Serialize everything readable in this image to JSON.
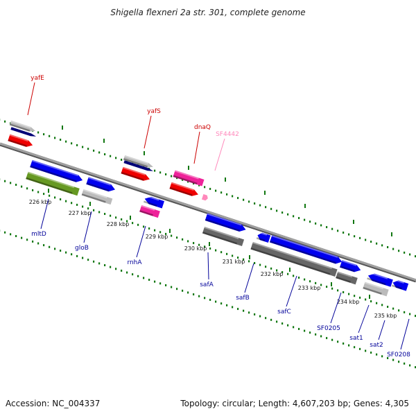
{
  "title": "Shigella flexneri 2a str. 301, complete genome",
  "footer": {
    "accession": "Accession: NC_004337",
    "summary": "Topology: circular; Length: 4,607,203 bp; Genes: 4,305"
  },
  "colors": {
    "upper_label": "#cc0000",
    "lower_label": "#000099",
    "pink_label": "#ff88bb",
    "tick": "#117711",
    "backbone": "#808080",
    "blue_feature": "#0000ee",
    "red_feature": "#ee0000",
    "pink_feature": "#ee2299",
    "green_feature": "#669922",
    "gray_feature": "#666666",
    "light_feature": "#bbbbbb",
    "navy_feature": "#000077"
  },
  "ticks": [
    "226 kbp",
    "227 kbp",
    "228 kbp",
    "229 kbp",
    "230 kbp",
    "231 kbp",
    "232 kbp",
    "233 kbp",
    "234 kbp",
    "235 kbp"
  ],
  "upper_genes": [
    "yafE",
    "yafS",
    "dnaQ",
    "SF4442"
  ],
  "lower_genes": [
    "mltD",
    "gloB",
    "rnhA",
    "safA",
    "safB",
    "safC",
    "SF0205",
    "sat1",
    "sat2",
    "SF0208"
  ]
}
